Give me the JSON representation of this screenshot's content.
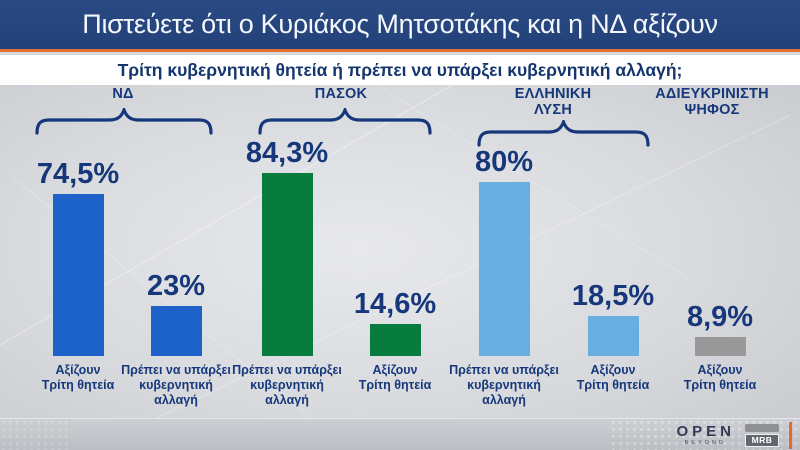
{
  "header": {
    "title": "Πιστεύετε ότι ο Κυριάκος Μητσοτάκης και η ΝΔ αξίζουν",
    "subtitle": "Τρίτη κυβερνητική θητεία ή πρέπει να υπάρξει κυβερνητική αλλαγή;"
  },
  "chart_data": {
    "type": "bar",
    "unit": "%",
    "ylim": [
      0,
      100
    ],
    "grid": false,
    "legend": "none",
    "value_labels_position": "above bars",
    "title": "Πιστεύετε ότι ο Κυριάκος Μητσοτάκης και η ΝΔ αξίζουν",
    "subtitle": "Τρίτη κυβερνητική θητεία ή πρέπει να υπάρξει κυβερνητική αλλαγή;",
    "groups": [
      {
        "name": "ΝΔ",
        "color": "#1c62c9",
        "bars": [
          {
            "category": "Αξίζουν\nΤρίτη θητεία",
            "value": 74.5,
            "display": "74,5%"
          },
          {
            "category": "Πρέπει να υπάρξει\nκυβερνητική\nαλλαγή",
            "value": 23,
            "display": "23%"
          }
        ]
      },
      {
        "name": "ΠΑΣΟΚ",
        "color": "#087c3e",
        "bars": [
          {
            "category": "Πρέπει να υπάρξει\nκυβερνητική\nαλλαγή",
            "value": 84.3,
            "display": "84,3%"
          },
          {
            "category": "Αξίζουν\nΤρίτη θητεία",
            "value": 14.6,
            "display": "14,6%"
          }
        ]
      },
      {
        "name": "ΕΛΛΗΝΙΚΗ\nΛΥΣΗ",
        "color": "#68afe1",
        "bars": [
          {
            "category": "Πρέπει να υπάρξει\nκυβερνητική\nαλλαγή",
            "value": 80,
            "display": "80%"
          },
          {
            "category": "Αξίζουν\nΤρίτη θητεία",
            "value": 18.5,
            "display": "18,5%"
          }
        ]
      },
      {
        "name": "ΑΔΙΕΥΚΡΙΝΙΣΤΗ\nΨΗΦΟΣ",
        "color": "#999999",
        "bars": [
          {
            "category": "Αξίζουν\nΤρίτη θητεία",
            "value": 8.9,
            "display": "8,9%"
          }
        ]
      }
    ]
  },
  "footer": {
    "open_logo": {
      "text": "OPEN",
      "subtext": "BEYOND"
    },
    "mrb_logo": {
      "text": "MRB"
    }
  },
  "colors": {
    "banner_bg": "#24427a",
    "banner_text": "#f4f7fb",
    "accent_orange": "#e4702f",
    "heading_navy": "#16387a",
    "nd_blue": "#1c62c9",
    "pasok_green": "#087c3e",
    "elliniki_lysi_blue": "#68afe1",
    "undecided_gray": "#999999",
    "background_gray": "#d7d9dd"
  }
}
